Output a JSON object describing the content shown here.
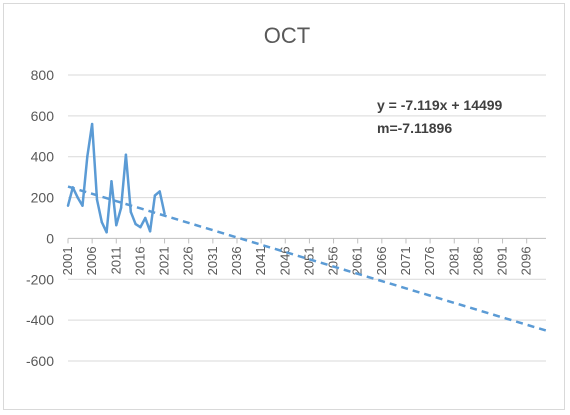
{
  "chart_data": {
    "type": "line",
    "title": "OCT",
    "xlabel": "",
    "ylabel": "",
    "xlim": [
      2001,
      2100
    ],
    "ylim": [
      -600,
      800
    ],
    "y_ticks": [
      "800",
      "600",
      "400",
      "200",
      "0",
      "-200",
      "-400",
      "-600"
    ],
    "x_ticks": [
      "2001",
      "2006",
      "2011",
      "2016",
      "2021",
      "2026",
      "2031",
      "2036",
      "2041",
      "2046",
      "2051",
      "2056",
      "2061",
      "2066",
      "2071",
      "2076",
      "2081",
      "2086",
      "2091",
      "2096"
    ],
    "grid": "horizontal",
    "legend": "none",
    "series": [
      {
        "style": "solid",
        "color": "#5b9bd5",
        "x": [
          2001,
          2002,
          2003,
          2004,
          2005,
          2006,
          2007,
          2008,
          2009,
          2010,
          2011,
          2012,
          2013,
          2014,
          2015,
          2016,
          2017,
          2018,
          2019,
          2020,
          2021
        ],
        "values": [
          160,
          250,
          200,
          160,
          400,
          560,
          190,
          80,
          30,
          280,
          65,
          150,
          410,
          130,
          70,
          55,
          100,
          35,
          210,
          230,
          120
        ]
      }
    ],
    "trendline": {
      "type": "linear",
      "style": "dashed",
      "color": "#5b9bd5",
      "slope": -7.119,
      "intercept": 14499,
      "x_range": [
        2001,
        2100
      ],
      "equation_label": "y = -7.119x + 14499",
      "slope_label": "m=-7.11896"
    }
  }
}
